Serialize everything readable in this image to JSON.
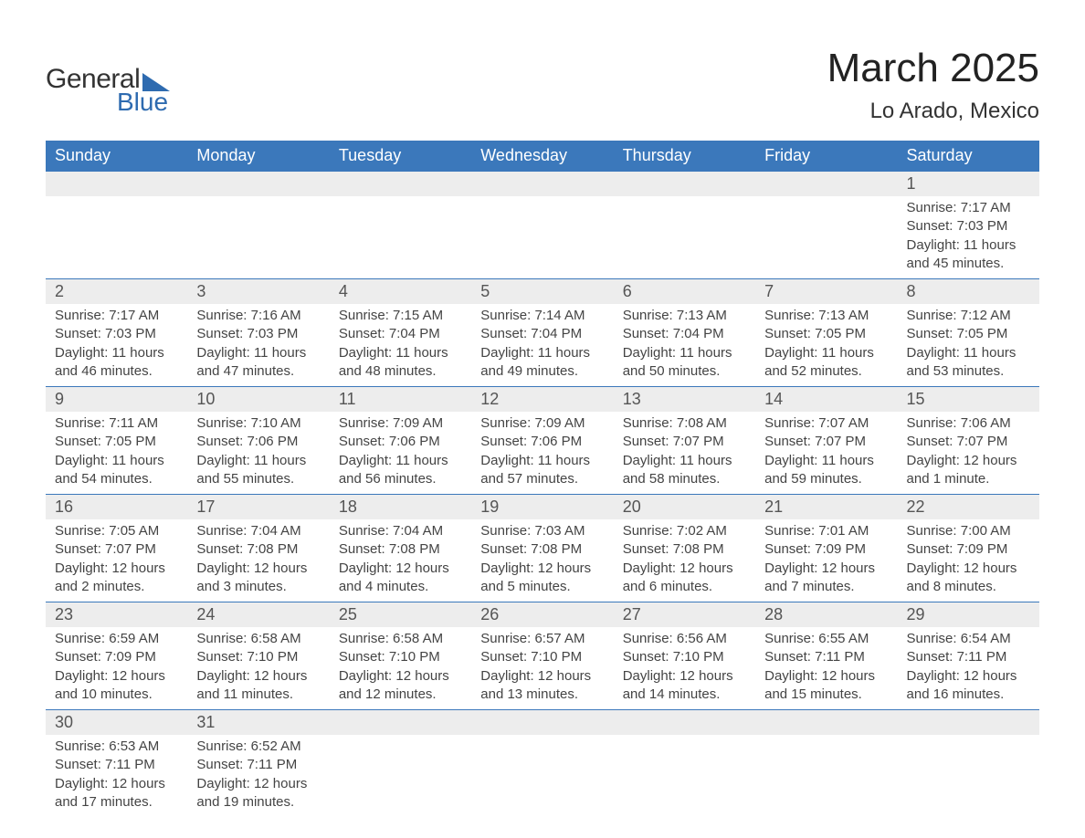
{
  "brand": {
    "word1": "General",
    "word2": "Blue",
    "word1_color": "#333333",
    "word2_color": "#2e6bb0",
    "shape_color": "#2e6bb0"
  },
  "header": {
    "month_title": "March 2025",
    "location": "Lo Arado, Mexico",
    "title_color": "#222222",
    "location_color": "#333333"
  },
  "style": {
    "header_bg": "#3b78bb",
    "header_text": "#ffffff",
    "daynum_bg": "#ededed",
    "daynum_text": "#555555",
    "detail_text": "#444444",
    "border_color": "#3b78bb",
    "page_bg": "#ffffff",
    "font_family": "Arial",
    "header_fontsize": 18,
    "daynum_fontsize": 18,
    "detail_fontsize": 15
  },
  "weekdays": [
    "Sunday",
    "Monday",
    "Tuesday",
    "Wednesday",
    "Thursday",
    "Friday",
    "Saturday"
  ],
  "weeks": [
    {
      "nums": [
        "",
        "",
        "",
        "",
        "",
        "",
        "1"
      ],
      "cells": [
        "",
        "",
        "",
        "",
        "",
        "",
        "Sunrise: 7:17 AM\nSunset: 7:03 PM\nDaylight: 11 hours and 45 minutes."
      ]
    },
    {
      "nums": [
        "2",
        "3",
        "4",
        "5",
        "6",
        "7",
        "8"
      ],
      "cells": [
        "Sunrise: 7:17 AM\nSunset: 7:03 PM\nDaylight: 11 hours and 46 minutes.",
        "Sunrise: 7:16 AM\nSunset: 7:03 PM\nDaylight: 11 hours and 47 minutes.",
        "Sunrise: 7:15 AM\nSunset: 7:04 PM\nDaylight: 11 hours and 48 minutes.",
        "Sunrise: 7:14 AM\nSunset: 7:04 PM\nDaylight: 11 hours and 49 minutes.",
        "Sunrise: 7:13 AM\nSunset: 7:04 PM\nDaylight: 11 hours and 50 minutes.",
        "Sunrise: 7:13 AM\nSunset: 7:05 PM\nDaylight: 11 hours and 52 minutes.",
        "Sunrise: 7:12 AM\nSunset: 7:05 PM\nDaylight: 11 hours and 53 minutes."
      ]
    },
    {
      "nums": [
        "9",
        "10",
        "11",
        "12",
        "13",
        "14",
        "15"
      ],
      "cells": [
        "Sunrise: 7:11 AM\nSunset: 7:05 PM\nDaylight: 11 hours and 54 minutes.",
        "Sunrise: 7:10 AM\nSunset: 7:06 PM\nDaylight: 11 hours and 55 minutes.",
        "Sunrise: 7:09 AM\nSunset: 7:06 PM\nDaylight: 11 hours and 56 minutes.",
        "Sunrise: 7:09 AM\nSunset: 7:06 PM\nDaylight: 11 hours and 57 minutes.",
        "Sunrise: 7:08 AM\nSunset: 7:07 PM\nDaylight: 11 hours and 58 minutes.",
        "Sunrise: 7:07 AM\nSunset: 7:07 PM\nDaylight: 11 hours and 59 minutes.",
        "Sunrise: 7:06 AM\nSunset: 7:07 PM\nDaylight: 12 hours and 1 minute."
      ]
    },
    {
      "nums": [
        "16",
        "17",
        "18",
        "19",
        "20",
        "21",
        "22"
      ],
      "cells": [
        "Sunrise: 7:05 AM\nSunset: 7:07 PM\nDaylight: 12 hours and 2 minutes.",
        "Sunrise: 7:04 AM\nSunset: 7:08 PM\nDaylight: 12 hours and 3 minutes.",
        "Sunrise: 7:04 AM\nSunset: 7:08 PM\nDaylight: 12 hours and 4 minutes.",
        "Sunrise: 7:03 AM\nSunset: 7:08 PM\nDaylight: 12 hours and 5 minutes.",
        "Sunrise: 7:02 AM\nSunset: 7:08 PM\nDaylight: 12 hours and 6 minutes.",
        "Sunrise: 7:01 AM\nSunset: 7:09 PM\nDaylight: 12 hours and 7 minutes.",
        "Sunrise: 7:00 AM\nSunset: 7:09 PM\nDaylight: 12 hours and 8 minutes."
      ]
    },
    {
      "nums": [
        "23",
        "24",
        "25",
        "26",
        "27",
        "28",
        "29"
      ],
      "cells": [
        "Sunrise: 6:59 AM\nSunset: 7:09 PM\nDaylight: 12 hours and 10 minutes.",
        "Sunrise: 6:58 AM\nSunset: 7:10 PM\nDaylight: 12 hours and 11 minutes.",
        "Sunrise: 6:58 AM\nSunset: 7:10 PM\nDaylight: 12 hours and 12 minutes.",
        "Sunrise: 6:57 AM\nSunset: 7:10 PM\nDaylight: 12 hours and 13 minutes.",
        "Sunrise: 6:56 AM\nSunset: 7:10 PM\nDaylight: 12 hours and 14 minutes.",
        "Sunrise: 6:55 AM\nSunset: 7:11 PM\nDaylight: 12 hours and 15 minutes.",
        "Sunrise: 6:54 AM\nSunset: 7:11 PM\nDaylight: 12 hours and 16 minutes."
      ]
    },
    {
      "nums": [
        "30",
        "31",
        "",
        "",
        "",
        "",
        ""
      ],
      "cells": [
        "Sunrise: 6:53 AM\nSunset: 7:11 PM\nDaylight: 12 hours and 17 minutes.",
        "Sunrise: 6:52 AM\nSunset: 7:11 PM\nDaylight: 12 hours and 19 minutes.",
        "",
        "",
        "",
        "",
        ""
      ]
    }
  ]
}
